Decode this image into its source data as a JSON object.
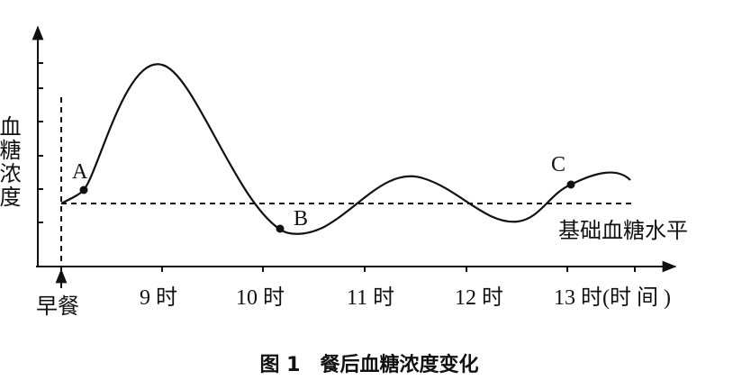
{
  "y_axis_label": "血糖浓度",
  "points": {
    "a": "A",
    "b": "B",
    "c": "C"
  },
  "baseline_label": "基础血糖水平",
  "x_labels": [
    "早餐",
    "9 时",
    "10 时",
    "11 时",
    "12 时",
    "13 时(时 间 )"
  ],
  "caption": "图 1　餐后血糖浓度变化"
}
